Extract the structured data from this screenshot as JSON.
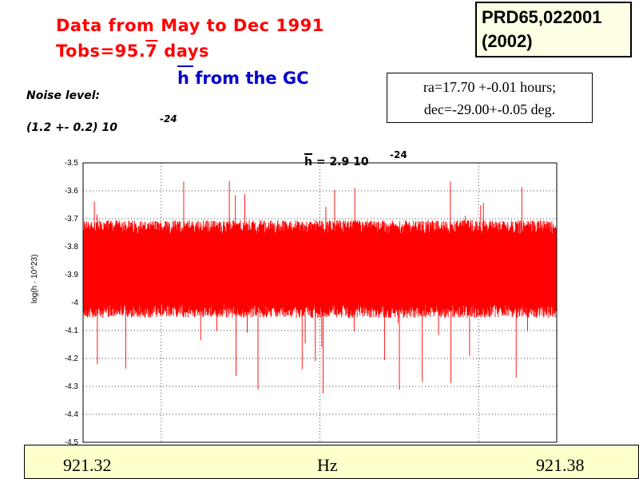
{
  "title": {
    "line1": "Data from May to Dec 1991",
    "line2_prefix": "Tobs=95.",
    "line2_overbar": "7",
    "line2_suffix": " days",
    "line3": "h from the  GC"
  },
  "reference": {
    "line1": "PRD65,022001",
    "line2": "(2002)"
  },
  "coordinates": {
    "ra": "ra=17.70 +-0.01 hours;",
    "dec": "dec=-29.00+-0.05 deg."
  },
  "noise": {
    "label": "Noise level:",
    "value": "(1.2   +- 0.2) 10",
    "exponent": "-24"
  },
  "hbar_annotation": {
    "text": "h  = 2.9 10",
    "exponent": "-24"
  },
  "bottom_axis": {
    "min": "921.32",
    "unit": "Hz",
    "max": "921.38"
  },
  "colors": {
    "series": "#ff0000",
    "title": "#ff0000",
    "subtitle": "#0000cc",
    "bottom_bar": "#ffffcc"
  },
  "chart_data": {
    "type": "line",
    "ylabel": "log(h · 10^23)",
    "ylim": [
      -4.5,
      -3.5
    ],
    "xlim": [
      921.32,
      921.38
    ],
    "yticks": [
      "-3.5",
      "-3.6",
      "-3.7",
      "-3.8",
      "-3.9",
      "-4",
      "-4.1",
      "-4.2",
      "-4.3",
      "-4.4",
      "-4.5"
    ],
    "ytick_values": [
      -3.5,
      -3.6,
      -3.7,
      -3.8,
      -3.9,
      -4.0,
      -4.1,
      -4.2,
      -4.3,
      -4.4,
      -4.5
    ],
    "grid": true,
    "series": [
      {
        "band_center": -3.88,
        "band_low": -4.02,
        "band_high": -3.74,
        "min": -4.33,
        "max": -3.56
      }
    ]
  }
}
